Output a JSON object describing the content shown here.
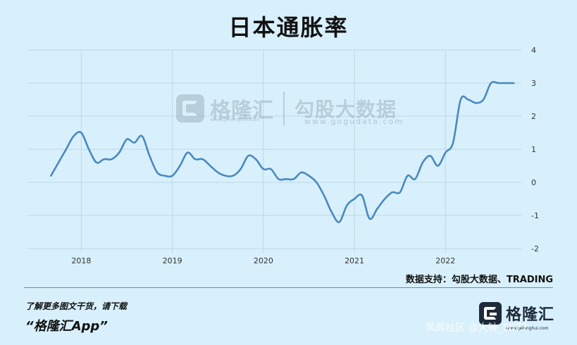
{
  "title": "日本通胀率",
  "source": "数据支持：勾股大数据、TRADING",
  "promo": {
    "line1": "了解更多图文干货，请下载",
    "line2": "“格隆汇App”"
  },
  "brand": {
    "name": "格隆汇",
    "url": "www.gelonghui.com"
  },
  "watermark": {
    "name1": "格隆汇",
    "url1": "www.gelonghui.com",
    "name2": "勾股大数据",
    "url2": "www.gogudata.com"
  },
  "credit": "风闻社区 @大钟_5077",
  "colors": {
    "line": "#4a89bf",
    "background": "#d8f0fb",
    "grid": "#bcd8e6"
  },
  "chart_data": {
    "type": "line",
    "title": "日本通胀率",
    "xlabel": "",
    "ylabel": "",
    "x_ticks": [
      "2018",
      "2019",
      "2020",
      "2021",
      "2022"
    ],
    "y_ticks": [
      -2,
      -1,
      0,
      1,
      2,
      3,
      4
    ],
    "ylim": [
      -2,
      4
    ],
    "xlim": [
      "2017-06",
      "2022-11"
    ],
    "grid": true,
    "series": [
      {
        "name": "",
        "x": [
          "2017-09",
          "2017-10",
          "2017-11",
          "2017-12",
          "2018-01",
          "2018-02",
          "2018-03",
          "2018-04",
          "2018-05",
          "2018-06",
          "2018-07",
          "2018-08",
          "2018-09",
          "2018-10",
          "2018-11",
          "2018-12",
          "2019-01",
          "2019-02",
          "2019-03",
          "2019-04",
          "2019-05",
          "2019-06",
          "2019-07",
          "2019-08",
          "2019-09",
          "2019-10",
          "2019-11",
          "2019-12",
          "2020-01",
          "2020-02",
          "2020-03",
          "2020-04",
          "2020-05",
          "2020-06",
          "2020-07",
          "2020-08",
          "2020-09",
          "2020-10",
          "2020-11",
          "2020-12",
          "2021-01",
          "2021-02",
          "2021-03",
          "2021-04",
          "2021-05",
          "2021-06",
          "2021-07",
          "2021-08",
          "2021-09",
          "2021-10",
          "2021-11",
          "2021-12",
          "2022-01",
          "2022-02",
          "2022-03",
          "2022-04",
          "2022-05",
          "2022-06",
          "2022-07",
          "2022-08",
          "2022-09",
          "2022-10"
        ],
        "values": [
          0.2,
          0.6,
          1.0,
          1.4,
          1.5,
          1.0,
          0.6,
          0.7,
          0.7,
          0.9,
          1.3,
          1.2,
          1.4,
          0.8,
          0.3,
          0.2,
          0.2,
          0.5,
          0.9,
          0.7,
          0.7,
          0.5,
          0.3,
          0.2,
          0.2,
          0.4,
          0.8,
          0.7,
          0.4,
          0.4,
          0.1,
          0.1,
          0.1,
          0.3,
          0.2,
          0.0,
          -0.4,
          -0.9,
          -1.2,
          -0.7,
          -0.5,
          -0.4,
          -1.1,
          -0.8,
          -0.5,
          -0.3,
          -0.3,
          0.2,
          0.1,
          0.6,
          0.8,
          0.5,
          0.9,
          1.2,
          2.5,
          2.5,
          2.4,
          2.5,
          3.0,
          3.0,
          3.0,
          3.0
        ]
      }
    ]
  }
}
